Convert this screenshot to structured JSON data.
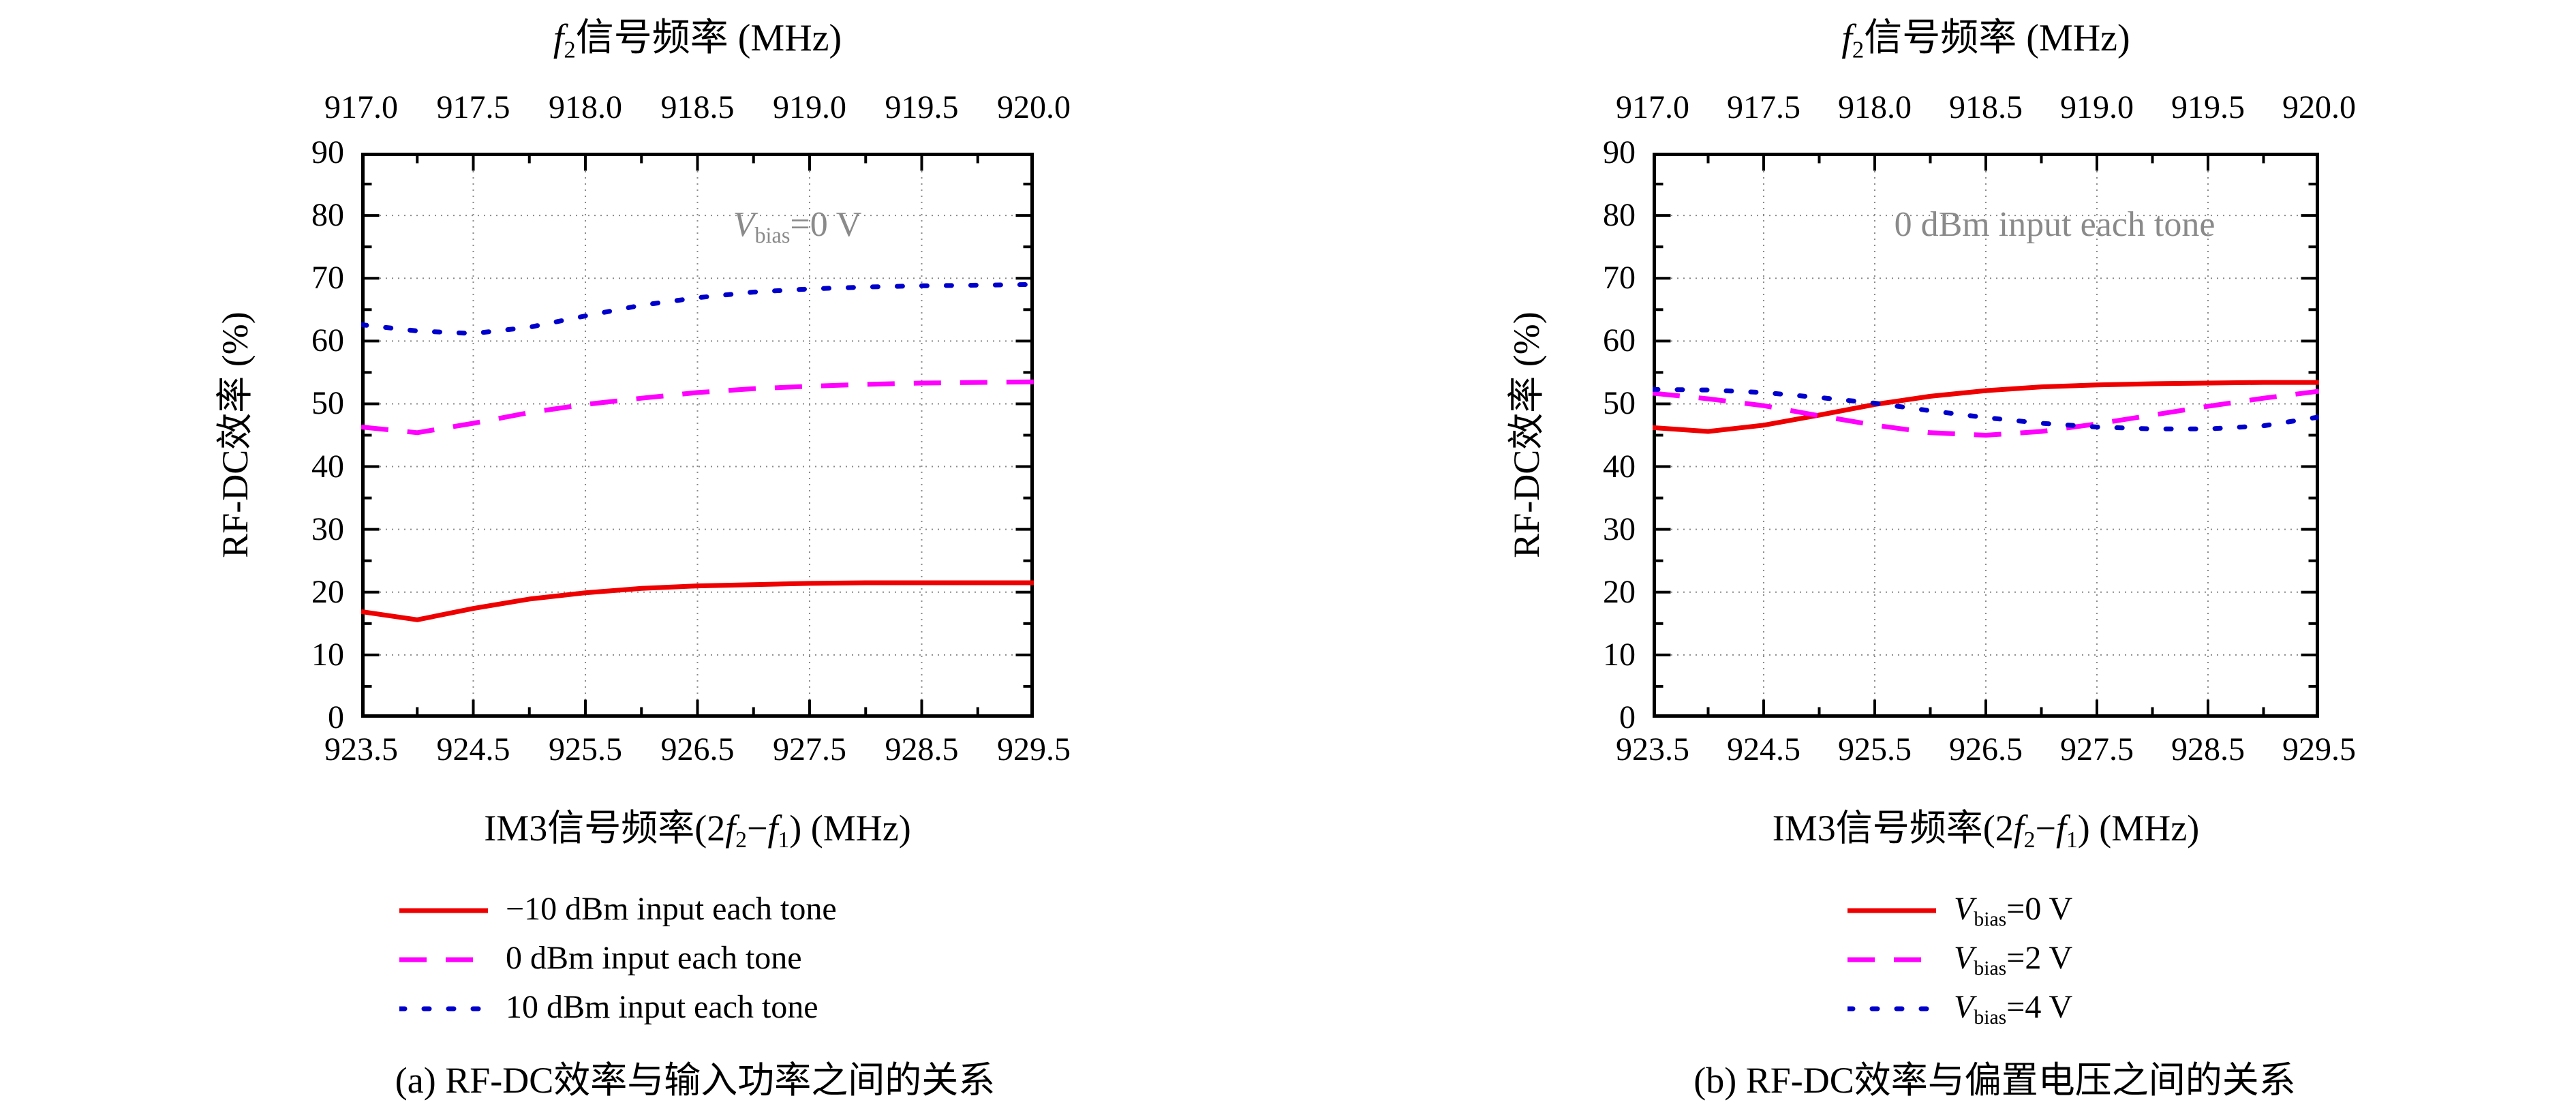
{
  "figure": {
    "background": "#ffffff",
    "axis_color": "#000000",
    "grid_color": "#8a8a8a",
    "annotation_color": "#8a8a8a"
  },
  "chart_data": [
    {
      "type": "line",
      "panel_label": "a",
      "title_var": "f",
      "title_sub": "2",
      "title_rest": "信号频率 (MHz)",
      "ylabel": "RF-DC效率 (%)",
      "xlabel_p1": "IM3信号频率(2",
      "xlabel_f2": "f",
      "xlabel_s2": "2",
      "xlabel_minus": "−",
      "xlabel_f1": "f",
      "xlabel_s1": "1",
      "xlabel_p2": ") (MHz)",
      "caption": "(a) RF-DC效率与输入功率之间的关系",
      "annotation": {
        "var": "V",
        "sub": "bias",
        "rest": "=0 V"
      },
      "x_min": 923.5,
      "x_max": 929.5,
      "x_major": 1.0,
      "x_minor": 0.5,
      "y_min": 0,
      "y_max": 90,
      "y_major": 10,
      "y_minor": 5,
      "top_min": 917.0,
      "top_max": 920.0,
      "top_major": 0.5,
      "top_minor": 0.25,
      "bottom_tick_labels": [
        "923.5",
        "924.5",
        "925.5",
        "926.5",
        "927.5",
        "928.5",
        "929.5"
      ],
      "top_tick_labels": [
        "917.0",
        "917.5",
        "918.0",
        "918.5",
        "919.0",
        "919.5",
        "920.0"
      ],
      "y_tick_labels": [
        "0",
        "10",
        "20",
        "30",
        "40",
        "50",
        "60",
        "70",
        "80",
        "90"
      ],
      "v_grid": [
        924.5,
        925.5,
        926.5,
        927.5,
        928.5
      ],
      "h_grid": [
        10,
        20,
        30,
        40,
        50,
        60,
        70,
        80
      ],
      "x": [
        923.5,
        924.0,
        924.5,
        925.0,
        925.5,
        926.0,
        926.5,
        927.0,
        927.5,
        928.0,
        928.5,
        929.0,
        929.5
      ],
      "series": [
        {
          "name": "−10 dBm input each tone",
          "color": "#ee0000",
          "style": "solid",
          "y": [
            16.9,
            15.6,
            17.4,
            18.9,
            19.9,
            20.6,
            21.0,
            21.2,
            21.4,
            21.5,
            21.5,
            21.5,
            21.5
          ]
        },
        {
          "name": "0 dBm input each tone",
          "color": "#ff00ff",
          "style": "dashed",
          "y": [
            46.3,
            45.4,
            46.9,
            48.6,
            49.9,
            50.9,
            51.8,
            52.4,
            52.8,
            53.1,
            53.3,
            53.4,
            53.5
          ]
        },
        {
          "name": "10 dBm input each tone",
          "color": "#0000cc",
          "style": "dotted",
          "y": [
            62.6,
            61.6,
            61.2,
            62.2,
            64.0,
            65.7,
            66.9,
            67.8,
            68.3,
            68.6,
            68.8,
            68.9,
            69.0
          ]
        }
      ],
      "legend": [
        {
          "var": "",
          "sub": "",
          "rest": "−10 dBm input each tone"
        },
        {
          "var": "",
          "sub": "",
          "rest": "0 dBm input each tone"
        },
        {
          "var": "",
          "sub": "",
          "rest": "10 dBm input each tone"
        }
      ]
    },
    {
      "type": "line",
      "panel_label": "b",
      "title_var": "f",
      "title_sub": "2",
      "title_rest": "信号频率 (MHz)",
      "ylabel": "RF-DC效率 (%)",
      "xlabel_p1": "IM3信号频率(2",
      "xlabel_f2": "f",
      "xlabel_s2": "2",
      "xlabel_minus": "−",
      "xlabel_f1": "f",
      "xlabel_s1": "1",
      "xlabel_p2": ") (MHz)",
      "caption": "(b) RF-DC效率与偏置电压之间的关系",
      "annotation": {
        "var": "",
        "sub": "",
        "rest": "0 dBm input each tone"
      },
      "x_min": 923.5,
      "x_max": 929.5,
      "x_major": 1.0,
      "x_minor": 0.5,
      "y_min": 0,
      "y_max": 90,
      "y_major": 10,
      "y_minor": 5,
      "top_min": 917.0,
      "top_max": 920.0,
      "top_major": 0.5,
      "top_minor": 0.25,
      "bottom_tick_labels": [
        "923.5",
        "924.5",
        "925.5",
        "926.5",
        "927.5",
        "928.5",
        "929.5"
      ],
      "top_tick_labels": [
        "917.0",
        "917.5",
        "918.0",
        "918.5",
        "919.0",
        "919.5",
        "920.0"
      ],
      "y_tick_labels": [
        "0",
        "10",
        "20",
        "30",
        "40",
        "50",
        "60",
        "70",
        "80",
        "90"
      ],
      "v_grid": [
        924.5,
        925.5,
        926.5,
        927.5,
        928.5
      ],
      "h_grid": [
        10,
        20,
        30,
        40,
        50,
        60,
        70,
        80
      ],
      "x": [
        923.5,
        924.0,
        924.5,
        925.0,
        925.5,
        926.0,
        926.5,
        927.0,
        927.5,
        928.0,
        928.5,
        929.0,
        929.5
      ],
      "series": [
        {
          "name": "Vbias=0 V",
          "color": "#ee0000",
          "style": "solid",
          "y": [
            46.2,
            45.6,
            46.6,
            48.2,
            49.9,
            51.2,
            52.1,
            52.7,
            53.0,
            53.2,
            53.3,
            53.4,
            53.4
          ]
        },
        {
          "name": "Vbias=2 V",
          "color": "#ff00ff",
          "style": "dashed",
          "y": [
            51.7,
            50.8,
            49.7,
            48.1,
            46.6,
            45.4,
            45.0,
            45.6,
            46.8,
            48.2,
            49.6,
            50.9,
            52.0
          ]
        },
        {
          "name": "Vbias=4 V",
          "color": "#0000cc",
          "style": "dotted",
          "y": [
            52.3,
            52.2,
            51.8,
            51.0,
            50.1,
            48.9,
            47.8,
            46.9,
            46.3,
            46.0,
            46.0,
            46.5,
            47.9
          ]
        }
      ],
      "legend": [
        {
          "var": "V",
          "sub": "bias",
          "rest": "=0 V"
        },
        {
          "var": "V",
          "sub": "bias",
          "rest": "=2 V"
        },
        {
          "var": "V",
          "sub": "bias",
          "rest": "=4 V"
        }
      ]
    }
  ]
}
